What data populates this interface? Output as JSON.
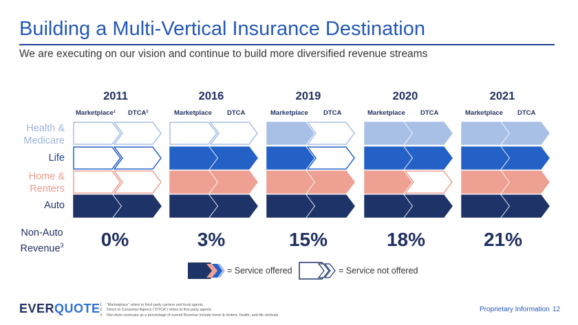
{
  "title": "Building a Multi-Vertical Insurance Destination",
  "subtitle": "We are executing on our vision and continue to build more diversified revenue streams",
  "colors": {
    "health": "#a8bfe6",
    "life": "#2461c6",
    "home": "#eea092",
    "auto": "#1e3368",
    "title": "#2457b5"
  },
  "rows": [
    {
      "key": "health",
      "line1": "Health &",
      "line2": "Medicare",
      "color": "#9fb3da"
    },
    {
      "key": "life",
      "line1": "Life",
      "line2": "",
      "color": "#1f3f8f"
    },
    {
      "key": "home",
      "line1": "Home &",
      "line2": "Renters",
      "color": "#eb9c8e"
    },
    {
      "key": "auto",
      "line1": "Auto",
      "line2": "",
      "color": "#1f2f5f"
    }
  ],
  "years": [
    {
      "year": "2011",
      "mkt_label": "Marketplace¹",
      "dtca_label": "DTCA²",
      "pct": "0%",
      "mkt": [
        false,
        false,
        false,
        true
      ],
      "dtca": [
        false,
        false,
        false,
        true
      ]
    },
    {
      "year": "2016",
      "mkt_label": "Marketplace",
      "dtca_label": "DTCA",
      "pct": "3%",
      "mkt": [
        false,
        true,
        true,
        true
      ],
      "dtca": [
        false,
        true,
        true,
        true
      ]
    },
    {
      "year": "2019",
      "mkt_label": "Marketplace",
      "dtca_label": "DTCA",
      "pct": "15%",
      "mkt": [
        true,
        true,
        true,
        true
      ],
      "dtca": [
        false,
        false,
        true,
        true
      ]
    },
    {
      "year": "2020",
      "mkt_label": "Marketplace",
      "dtca_label": "DTCA",
      "pct": "18%",
      "mkt": [
        true,
        true,
        true,
        true
      ],
      "dtca": [
        true,
        true,
        false,
        true
      ]
    },
    {
      "year": "2021",
      "mkt_label": "Marketplace",
      "dtca_label": "DTCA",
      "pct": "21%",
      "mkt": [
        true,
        true,
        true,
        true
      ],
      "dtca": [
        true,
        true,
        true,
        true
      ]
    }
  ],
  "nonauto": {
    "line1": "Non-Auto",
    "line2": "Revenue",
    "sup": "3"
  },
  "legend": {
    "offered": "= Service offered",
    "not_offered": "= Service not offered"
  },
  "logo": {
    "part1": "EVER",
    "part2": "QUOTE"
  },
  "footnotes": [
    {
      "n": "1.",
      "text": "“Marketplace” refers to third party carriers and local agents."
    },
    {
      "n": "2.",
      "text": "Direct to Consumer Agency (“DTCA”) refers to first party agents."
    },
    {
      "n": "3.",
      "text": "Non-Auto revenues as a percentage of overall Revenue include home & renters, health, and life verticals."
    }
  ],
  "footer": {
    "proprietary": "Proprietary Information",
    "page": "12"
  }
}
